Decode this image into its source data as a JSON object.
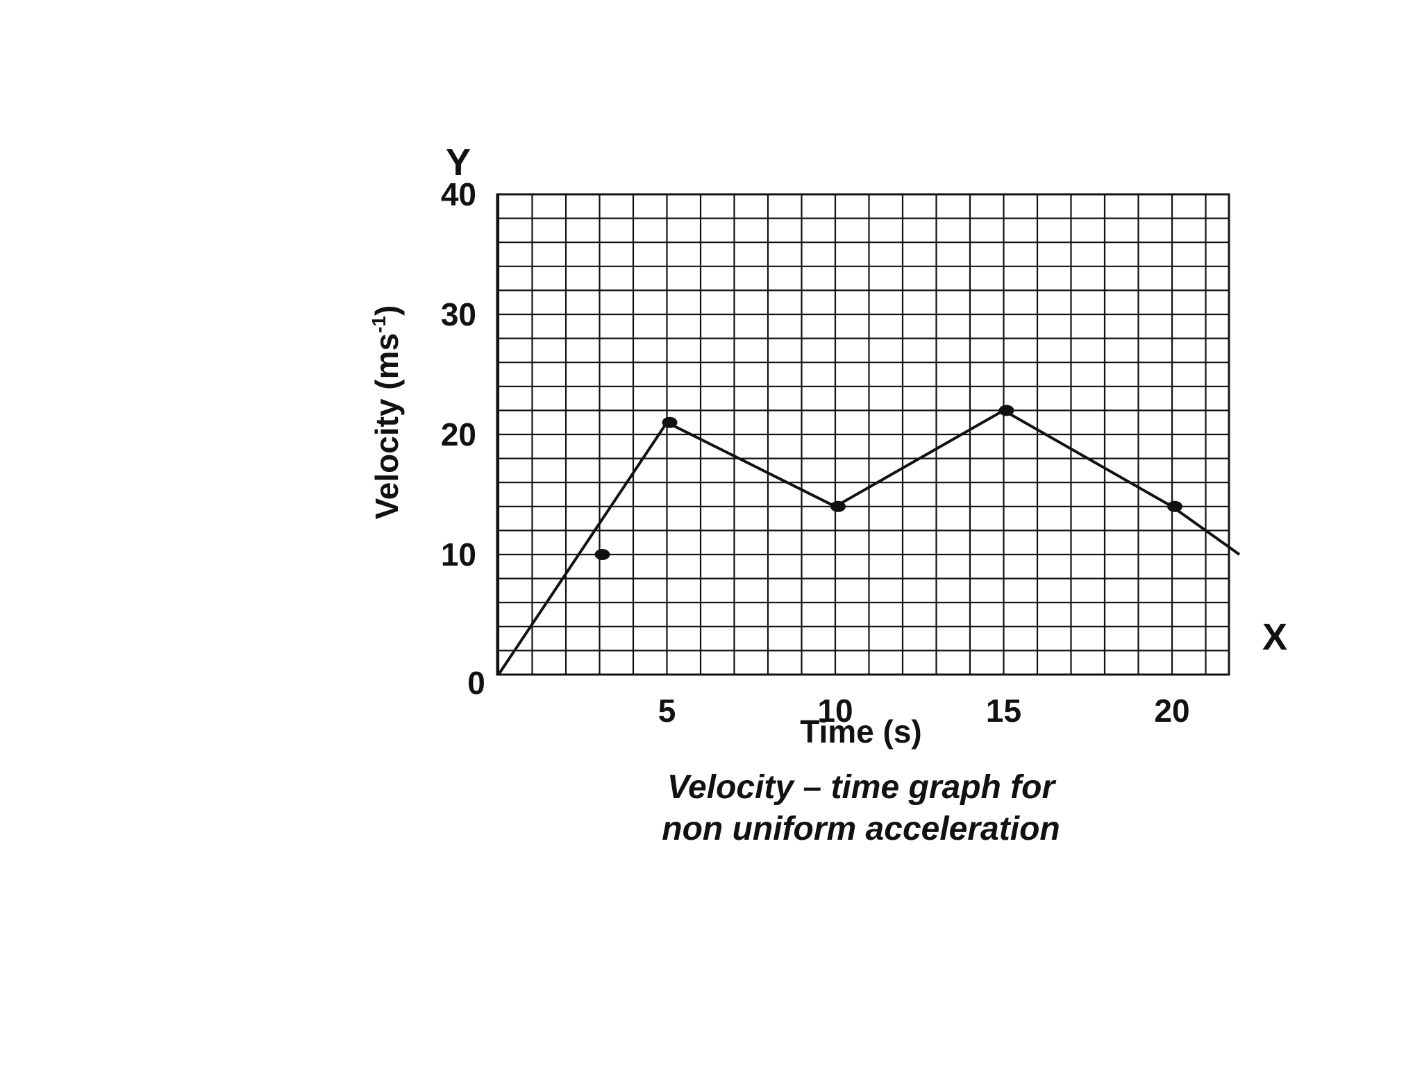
{
  "chart_data": {
    "type": "line",
    "x": [
      0,
      5,
      10,
      15,
      20,
      22
    ],
    "y": [
      0,
      21,
      14,
      22,
      14,
      10
    ],
    "markers": [
      {
        "x": 3,
        "y": 10
      },
      {
        "x": 5,
        "y": 21
      },
      {
        "x": 10,
        "y": 14
      },
      {
        "x": 15,
        "y": 22
      },
      {
        "x": 20,
        "y": 14
      }
    ],
    "title": "Velocity – time graph for\nnon uniform acceleration",
    "title_lines": [
      "Velocity – time graph for",
      "non uniform acceleration"
    ],
    "xlabel": "Time (s)",
    "ylabel": "Velocity (ms",
    "ylabel_superscript": "-1",
    "ylabel_close": ")",
    "x_axis_letter": "X",
    "y_axis_letter": "Y",
    "origin_label": "0",
    "xlim": [
      0,
      22
    ],
    "ylim": [
      0,
      40
    ],
    "x_ticks": [
      5,
      10,
      15,
      20
    ],
    "x_tick_labels": [
      "5",
      "10",
      "15",
      "20"
    ],
    "y_ticks": [
      10,
      20,
      30,
      40
    ],
    "y_tick_labels": [
      "10",
      "20",
      "30",
      "40"
    ],
    "grid": true,
    "grid_x_step": 1,
    "grid_y_step": 2,
    "line_color": "#111111"
  }
}
